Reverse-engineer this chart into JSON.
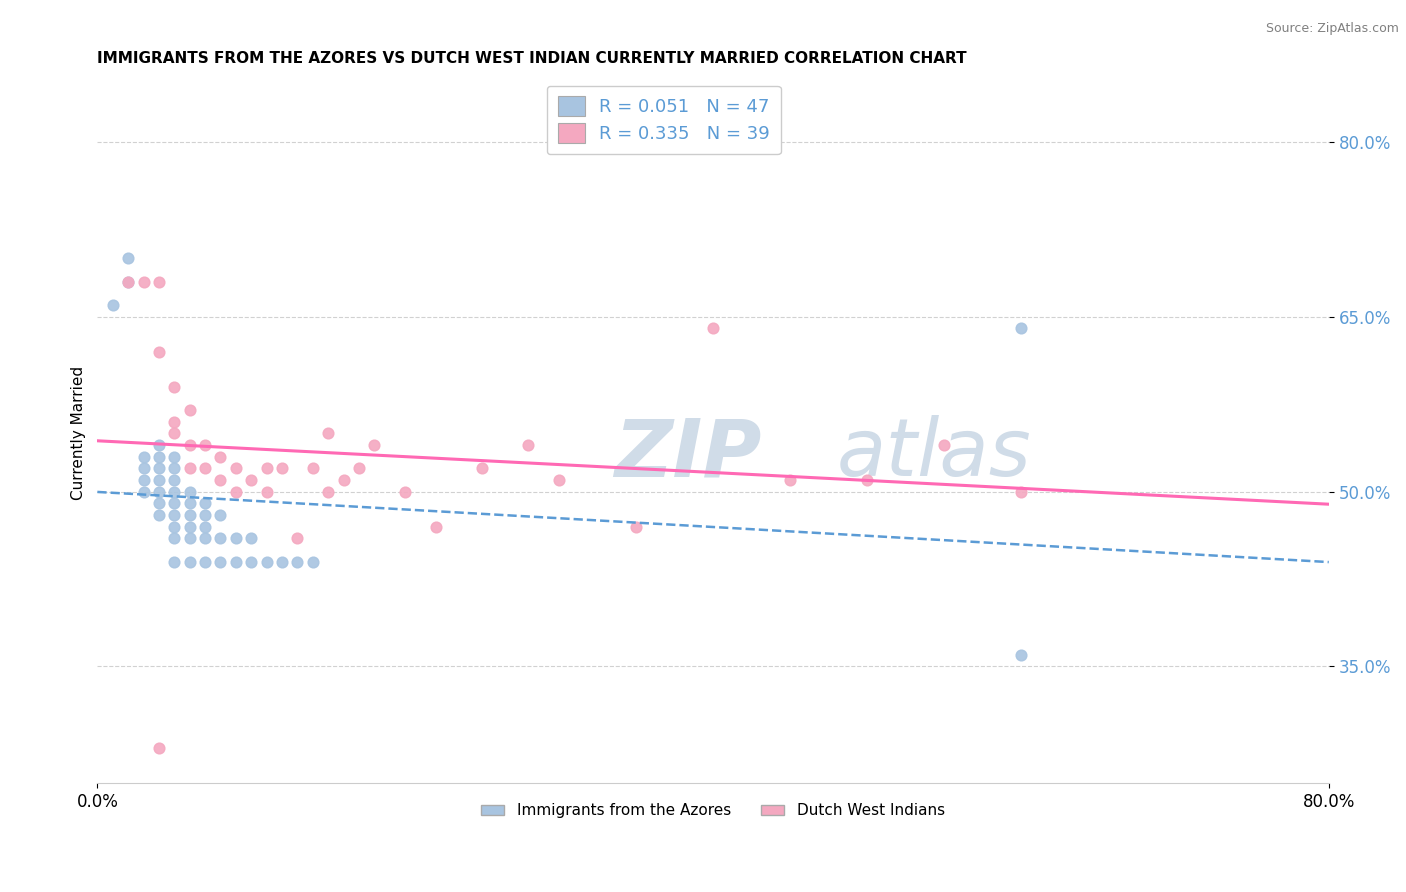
{
  "title": "IMMIGRANTS FROM THE AZORES VS DUTCH WEST INDIAN CURRENTLY MARRIED CORRELATION CHART",
  "source": "Source: ZipAtlas.com",
  "ylabel": "Currently Married",
  "legend1_text": "R = 0.051   N = 47",
  "legend2_text": "R = 0.335   N = 39",
  "legend1_label": "Immigrants from the Azores",
  "legend2_label": "Dutch West Indians",
  "azores_color": "#a8c4e0",
  "dutch_color": "#f4a8c0",
  "azores_line_color": "#5b9bd5",
  "dutch_line_color": "#ff69b4",
  "grid_color": "#cccccc",
  "background_color": "#ffffff",
  "watermark_color": "#d0dce8",
  "xlim": [
    0.0,
    0.8
  ],
  "ylim": [
    0.25,
    0.85
  ],
  "ytick_vals": [
    0.35,
    0.5,
    0.65,
    0.8
  ],
  "ytick_labels": [
    "35.0%",
    "50.0%",
    "65.0%",
    "80.0%"
  ],
  "azores_x": [
    0.01,
    0.02,
    0.02,
    0.03,
    0.03,
    0.03,
    0.03,
    0.04,
    0.04,
    0.04,
    0.04,
    0.04,
    0.04,
    0.04,
    0.05,
    0.05,
    0.05,
    0.05,
    0.05,
    0.05,
    0.05,
    0.05,
    0.05,
    0.06,
    0.06,
    0.06,
    0.06,
    0.06,
    0.06,
    0.07,
    0.07,
    0.07,
    0.07,
    0.07,
    0.08,
    0.08,
    0.08,
    0.09,
    0.09,
    0.1,
    0.1,
    0.11,
    0.12,
    0.13,
    0.14,
    0.6,
    0.6
  ],
  "azores_y": [
    0.66,
    0.68,
    0.7,
    0.5,
    0.51,
    0.52,
    0.53,
    0.48,
    0.49,
    0.5,
    0.51,
    0.52,
    0.53,
    0.54,
    0.44,
    0.46,
    0.47,
    0.48,
    0.49,
    0.5,
    0.51,
    0.52,
    0.53,
    0.44,
    0.46,
    0.47,
    0.48,
    0.49,
    0.5,
    0.44,
    0.46,
    0.47,
    0.48,
    0.49,
    0.44,
    0.46,
    0.48,
    0.44,
    0.46,
    0.44,
    0.46,
    0.44,
    0.44,
    0.44,
    0.44,
    0.64,
    0.36
  ],
  "dutch_x": [
    0.02,
    0.03,
    0.04,
    0.04,
    0.05,
    0.05,
    0.05,
    0.06,
    0.06,
    0.06,
    0.07,
    0.07,
    0.08,
    0.08,
    0.09,
    0.09,
    0.1,
    0.11,
    0.11,
    0.12,
    0.13,
    0.14,
    0.15,
    0.15,
    0.16,
    0.17,
    0.18,
    0.2,
    0.22,
    0.25,
    0.28,
    0.3,
    0.35,
    0.4,
    0.45,
    0.5,
    0.55,
    0.6,
    0.04
  ],
  "dutch_y": [
    0.68,
    0.68,
    0.68,
    0.62,
    0.55,
    0.56,
    0.59,
    0.52,
    0.54,
    0.57,
    0.52,
    0.54,
    0.51,
    0.53,
    0.5,
    0.52,
    0.51,
    0.5,
    0.52,
    0.52,
    0.46,
    0.52,
    0.5,
    0.55,
    0.51,
    0.52,
    0.54,
    0.5,
    0.47,
    0.52,
    0.54,
    0.51,
    0.47,
    0.64,
    0.51,
    0.51,
    0.54,
    0.5,
    0.28
  ]
}
